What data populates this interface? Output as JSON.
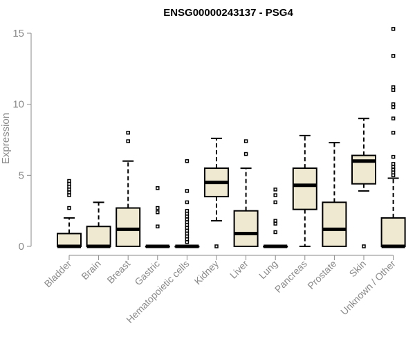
{
  "chart_data": {
    "type": "boxplot",
    "title": "ENSG00000243137 - PSG4",
    "ylabel": "Expression",
    "xlabel": "",
    "ylim": [
      0,
      15.5
    ],
    "yticks": [
      0,
      5,
      10,
      15
    ],
    "ytick_labels": [
      "0",
      "5",
      "10",
      "15"
    ],
    "categories": [
      "Bladder",
      "Brain",
      "Breast",
      "Gastric",
      "Hematopoietic cells",
      "Kidney",
      "Liver",
      "Lung",
      "Pancreas",
      "Prostate",
      "Skin",
      "Unknown / Other"
    ],
    "boxes": [
      {
        "q1": 0,
        "median": 0,
        "q3": 0.9,
        "whisker_low": 0,
        "whisker_high": 2.0,
        "outliers": [
          2.7,
          3.6,
          3.8,
          4.0,
          4.2,
          4.4,
          4.6
        ]
      },
      {
        "q1": 0,
        "median": 0,
        "q3": 1.4,
        "whisker_low": 0,
        "whisker_high": 3.1,
        "outliers": []
      },
      {
        "q1": 0,
        "median": 1.2,
        "q3": 2.7,
        "whisker_low": 0,
        "whisker_high": 6.0,
        "outliers": [
          7.4,
          8.0
        ]
      },
      {
        "q1": 0,
        "median": 0,
        "q3": 0,
        "whisker_low": 0,
        "whisker_high": 0,
        "outliers": [
          1.4,
          2.4,
          2.7,
          4.1
        ]
      },
      {
        "q1": 0,
        "median": 0,
        "q3": 0,
        "whisker_low": 0,
        "whisker_high": 0,
        "outliers": [
          0.3,
          0.5,
          0.7,
          0.9,
          1.1,
          1.3,
          1.5,
          1.7,
          1.9,
          2.1,
          2.3,
          2.5,
          3.1,
          3.9,
          6.0
        ]
      },
      {
        "q1": 3.5,
        "median": 4.5,
        "q3": 5.5,
        "whisker_low": 1.8,
        "whisker_high": 7.6,
        "outliers": [
          0
        ]
      },
      {
        "q1": 0,
        "median": 0.9,
        "q3": 2.5,
        "whisker_low": 0,
        "whisker_high": 5.5,
        "outliers": [
          6.5,
          7.4
        ]
      },
      {
        "q1": 0,
        "median": 0,
        "q3": 0,
        "whisker_low": 0,
        "whisker_high": 0,
        "outliers": [
          1.0,
          1.6,
          1.8,
          3.1,
          3.6,
          4.0
        ]
      },
      {
        "q1": 2.6,
        "median": 4.3,
        "q3": 5.5,
        "whisker_low": 0,
        "whisker_high": 7.8,
        "outliers": []
      },
      {
        "q1": 0,
        "median": 1.2,
        "q3": 3.1,
        "whisker_low": 0,
        "whisker_high": 7.3,
        "outliers": []
      },
      {
        "q1": 4.4,
        "median": 6.0,
        "q3": 6.4,
        "whisker_low": 3.9,
        "whisker_high": 9.0,
        "outliers": [
          0
        ]
      },
      {
        "q1": 0,
        "median": 0,
        "q3": 2.0,
        "whisker_low": 0,
        "whisker_high": 4.8,
        "outliers": [
          5.0,
          5.2,
          5.4,
          5.6,
          5.8,
          6.3,
          8.0,
          9.0,
          9.8,
          10.0,
          11.0,
          11.2,
          13.4,
          15.3
        ]
      }
    ],
    "grid": false,
    "legend": "none"
  }
}
